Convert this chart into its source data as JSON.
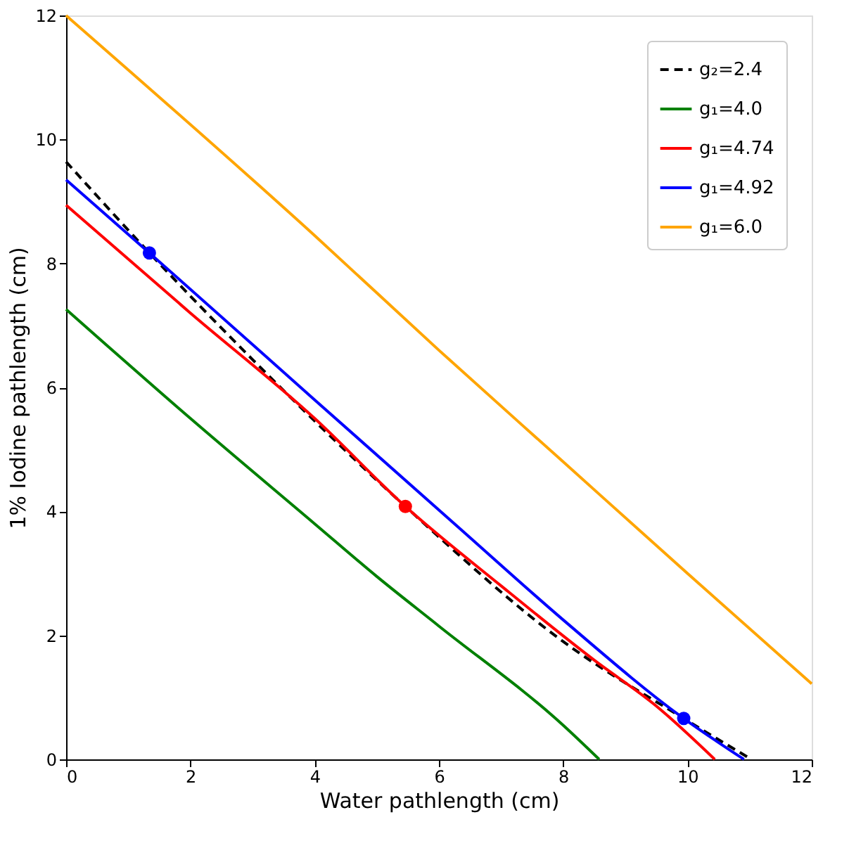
{
  "chart_data": {
    "type": "line",
    "xlabel": "Water pathlength (cm)",
    "ylabel": "1% Iodine  pathlength (cm)",
    "xlim": [
      0,
      12
    ],
    "ylim": [
      0,
      12
    ],
    "xticks": [
      0,
      2,
      4,
      6,
      8,
      10,
      12
    ],
    "yticks": [
      0,
      2,
      4,
      6,
      8,
      10,
      12
    ],
    "grid": false,
    "legend": "top right",
    "marker": "none",
    "series": [
      {
        "name": "g₂=2.4",
        "color": "#000000",
        "line_style": "dashed",
        "x": [
          0,
          1.34,
          3,
          5.46,
          8,
          9.94,
          11.03
        ],
        "values": [
          9.64,
          8.17,
          6.45,
          4.08,
          1.9,
          0.66,
          0
        ]
      },
      {
        "name": "g₁=4.0",
        "color": "#008000",
        "line_style": "solid",
        "x": [
          0,
          2,
          4,
          5,
          6,
          8,
          8.58
        ],
        "values": [
          7.26,
          5.5,
          3.8,
          2.95,
          2.15,
          0.55,
          0
        ]
      },
      {
        "name": "g₁=4.74",
        "color": "#ff0000",
        "line_style": "solid",
        "x": [
          0,
          2,
          4,
          5.46,
          7,
          8.5,
          9.5,
          10.44
        ],
        "values": [
          8.94,
          7.2,
          5.5,
          4.08,
          2.8,
          1.6,
          0.86,
          0
        ]
      },
      {
        "name": "g₁=4.92",
        "color": "#0000ff",
        "line_style": "solid",
        "x": [
          0,
          1.34,
          4,
          6.34,
          8,
          9.94,
          10.91
        ],
        "values": [
          9.35,
          8.17,
          5.8,
          3.72,
          2.25,
          0.66,
          0
        ]
      },
      {
        "name": "g₁=6.0",
        "color": "#ffa500",
        "line_style": "solid",
        "x": [
          0,
          4,
          6,
          8,
          10,
          12
        ],
        "values": [
          12,
          8.45,
          6.6,
          4.8,
          3.0,
          1.22
        ]
      },
      {
        "type": "scatter",
        "marker": "circle",
        "color": "#0000ff",
        "x": [
          1.34,
          9.94
        ],
        "values": [
          8.17,
          0.66
        ]
      },
      {
        "type": "scatter",
        "marker": "circle",
        "color": "#ff0000",
        "x": [
          5.46
        ],
        "values": [
          4.08
        ]
      }
    ]
  }
}
